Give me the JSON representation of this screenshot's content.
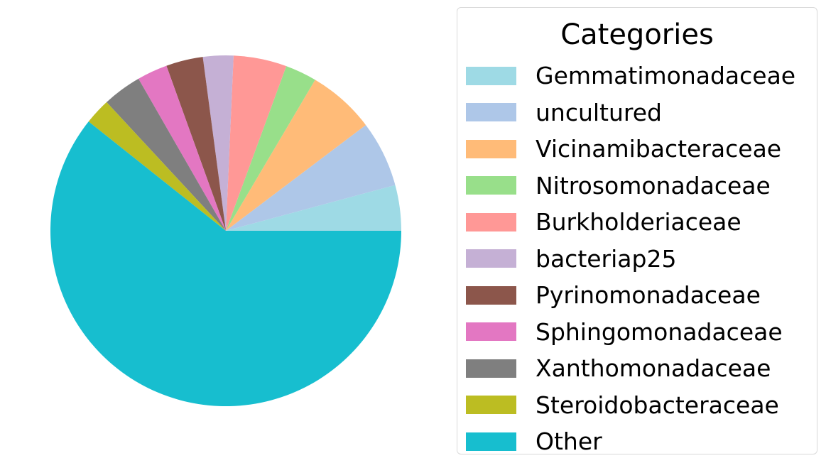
{
  "chart_data": {
    "type": "pie",
    "legend_title": "Categories",
    "legend_position": "right",
    "slices": [
      {
        "label": "Gemmatimonadaceae",
        "value": 4.2,
        "color": "#9edae5"
      },
      {
        "label": "uncultured",
        "value": 6.1,
        "color": "#aec7e8"
      },
      {
        "label": "Vicinamibacteraceae",
        "value": 6.2,
        "color": "#ffbb78"
      },
      {
        "label": "Nitrosomonadaceae",
        "value": 2.9,
        "color": "#98df8a"
      },
      {
        "label": "Burkholderiaceae",
        "value": 4.9,
        "color": "#ff9896"
      },
      {
        "label": "bacteriap25",
        "value": 2.8,
        "color": "#c5b0d5"
      },
      {
        "label": "Pyrinomonadaceae",
        "value": 3.4,
        "color": "#8c564b"
      },
      {
        "label": "Sphingomonadaceae",
        "value": 2.8,
        "color": "#e377c2"
      },
      {
        "label": "Xanthomonadaceae",
        "value": 3.6,
        "color": "#7f7f7f"
      },
      {
        "label": "Steroidobacteraceae",
        "value": 2.4,
        "color": "#bcbd22"
      },
      {
        "label": "Other",
        "value": 60.7,
        "color": "#17becf"
      }
    ]
  }
}
